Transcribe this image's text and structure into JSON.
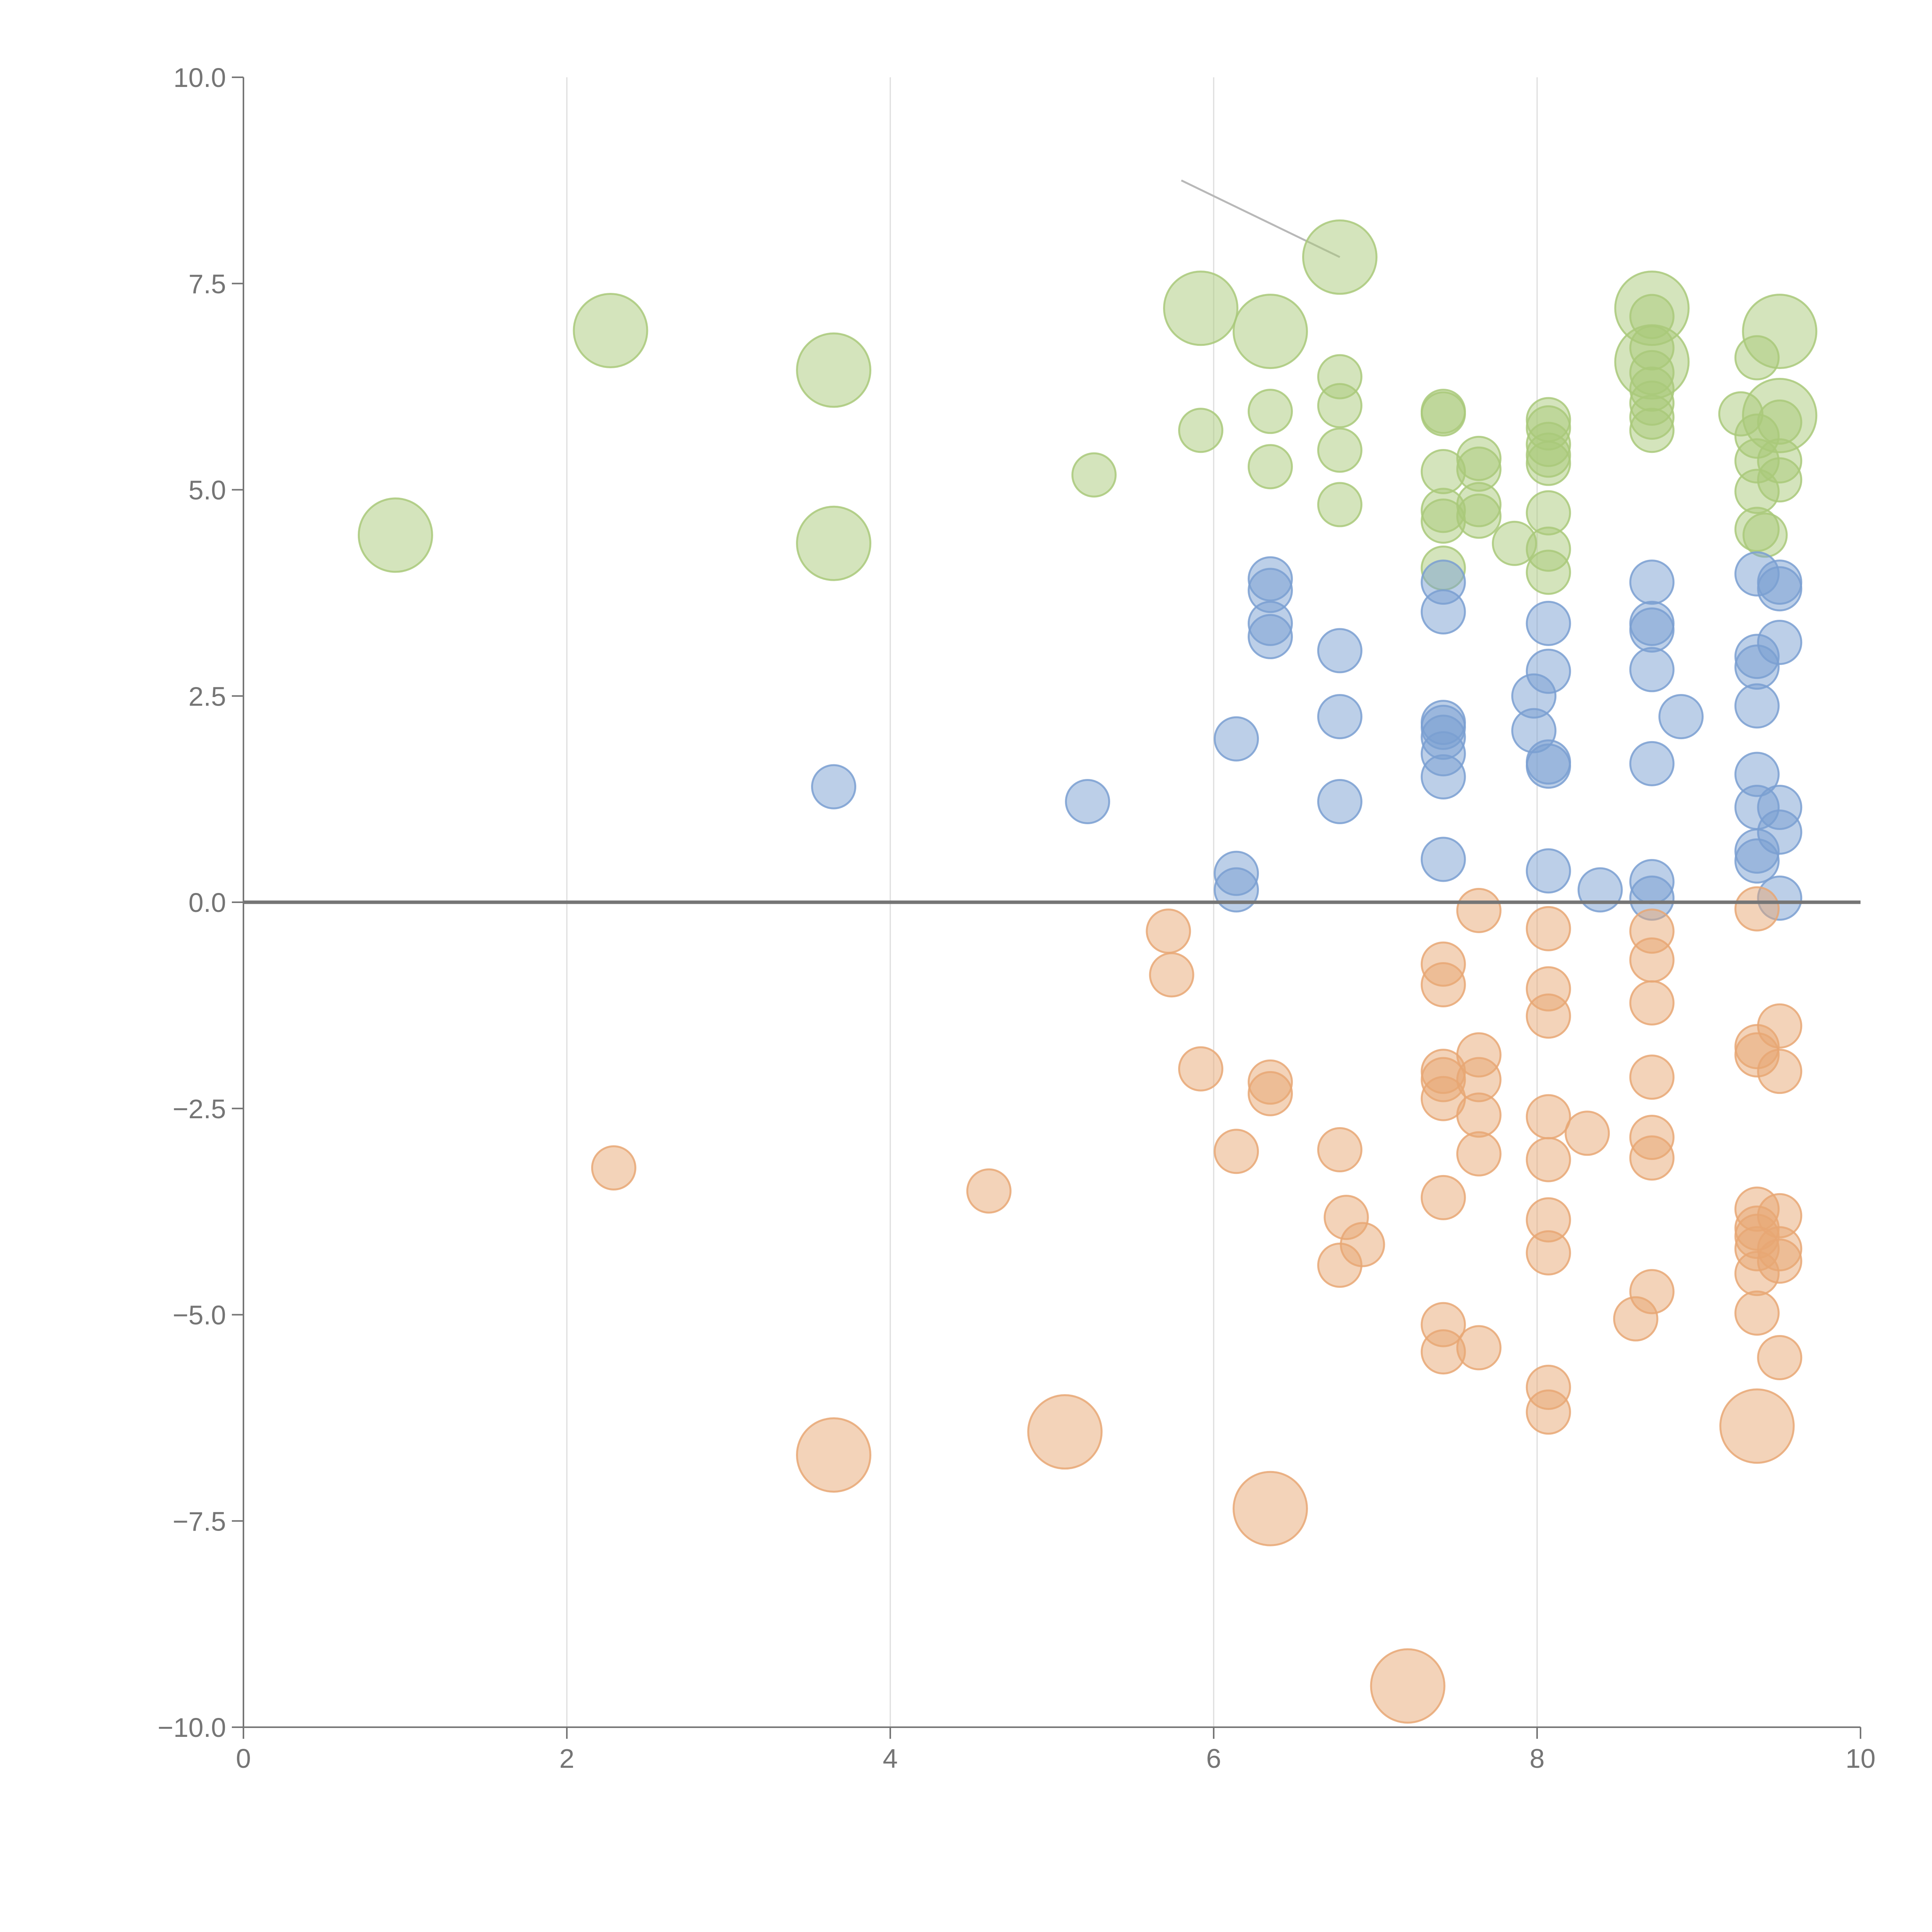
{
  "chart_data": {
    "type": "scatter",
    "title": "",
    "xlabel": "",
    "ylabel": "",
    "xlim": [
      0,
      10
    ],
    "ylim": [
      -10,
      10
    ],
    "grid": "vertical",
    "x_ticks": [
      "0",
      "2",
      "4",
      "6",
      "8",
      "10"
    ],
    "y_ticks": [
      "10.0",
      "7.5",
      "5.0",
      "2.5",
      "0.0",
      "−2.5",
      "−5.0",
      "−7.5",
      "−10.0"
    ],
    "colors": {
      "green": "#a9c97a",
      "blue": "#7a9fd1",
      "orange": "#e8a774",
      "zero_line": "#757575",
      "axis": "#757575",
      "grid": "#dddddd"
    },
    "series": [
      {
        "name": "green",
        "points": [
          [
            0.94,
            4.45,
            2
          ],
          [
            2.27,
            6.93,
            2
          ],
          [
            3.65,
            6.45,
            2
          ],
          [
            3.65,
            4.35,
            2
          ],
          [
            5.26,
            5.18,
            1
          ],
          [
            5.92,
            5.72,
            1
          ],
          [
            5.92,
            7.2,
            2
          ],
          [
            6.35,
            6.92,
            2
          ],
          [
            6.35,
            5.95,
            1
          ],
          [
            6.35,
            5.28,
            1
          ],
          [
            6.78,
            7.82,
            2
          ],
          [
            6.78,
            6.37,
            1
          ],
          [
            6.78,
            6.02,
            1
          ],
          [
            6.78,
            5.48,
            1
          ],
          [
            6.78,
            4.82,
            1
          ],
          [
            7.42,
            5.95,
            1
          ],
          [
            7.42,
            5.92,
            1
          ],
          [
            7.42,
            5.22,
            1
          ],
          [
            7.42,
            4.75,
            1
          ],
          [
            7.42,
            4.62,
            1
          ],
          [
            7.42,
            4.05,
            1
          ],
          [
            7.64,
            5.38,
            1
          ],
          [
            7.64,
            5.25,
            1
          ],
          [
            7.64,
            4.82,
            1
          ],
          [
            7.64,
            4.68,
            1
          ],
          [
            7.86,
            4.35,
            1
          ],
          [
            8.07,
            5.85,
            1
          ],
          [
            8.07,
            5.75,
            1
          ],
          [
            8.07,
            5.55,
            1
          ],
          [
            8.07,
            5.42,
            1
          ],
          [
            8.07,
            5.32,
            1
          ],
          [
            8.07,
            4.72,
            1
          ],
          [
            8.07,
            4.28,
            1
          ],
          [
            8.07,
            4.0,
            1
          ],
          [
            8.71,
            7.2,
            2
          ],
          [
            8.71,
            7.1,
            1
          ],
          [
            8.71,
            6.72,
            1
          ],
          [
            8.71,
            6.55,
            2
          ],
          [
            8.71,
            6.42,
            1
          ],
          [
            8.71,
            6.22,
            1
          ],
          [
            8.71,
            6.05,
            1
          ],
          [
            8.71,
            5.88,
            1
          ],
          [
            8.71,
            5.72,
            1
          ],
          [
            9.26,
            5.92,
            1
          ],
          [
            9.36,
            6.6,
            1
          ],
          [
            9.36,
            5.65,
            1
          ],
          [
            9.36,
            5.35,
            1
          ],
          [
            9.36,
            4.98,
            1
          ],
          [
            9.36,
            4.52,
            1
          ],
          [
            9.5,
            6.92,
            2
          ],
          [
            9.5,
            5.9,
            2
          ],
          [
            9.5,
            5.82,
            1
          ],
          [
            9.5,
            5.35,
            1
          ],
          [
            9.5,
            5.12,
            1
          ],
          [
            9.41,
            4.45,
            1
          ]
        ]
      },
      {
        "name": "blue",
        "points": [
          [
            3.65,
            1.4,
            1
          ],
          [
            5.22,
            1.22,
            1
          ],
          [
            6.14,
            1.98,
            1
          ],
          [
            6.14,
            0.35,
            1
          ],
          [
            6.14,
            0.15,
            1
          ],
          [
            6.35,
            3.92,
            1
          ],
          [
            6.35,
            3.78,
            1
          ],
          [
            6.35,
            3.38,
            1
          ],
          [
            6.35,
            3.22,
            1
          ],
          [
            6.78,
            3.05,
            1
          ],
          [
            6.78,
            2.25,
            1
          ],
          [
            6.78,
            1.22,
            1
          ],
          [
            7.42,
            3.88,
            1
          ],
          [
            7.42,
            3.52,
            1
          ],
          [
            7.42,
            2.18,
            1
          ],
          [
            7.42,
            2.12,
            1
          ],
          [
            7.42,
            2.0,
            1
          ],
          [
            7.42,
            1.8,
            1
          ],
          [
            7.42,
            1.52,
            1
          ],
          [
            7.42,
            0.52,
            1
          ],
          [
            7.98,
            2.5,
            1
          ],
          [
            7.98,
            2.08,
            1
          ],
          [
            8.07,
            3.38,
            1
          ],
          [
            8.07,
            2.8,
            1
          ],
          [
            8.07,
            1.7,
            1
          ],
          [
            8.07,
            1.65,
            1
          ],
          [
            8.07,
            0.38,
            1
          ],
          [
            8.39,
            0.15,
            1
          ],
          [
            8.71,
            3.88,
            1
          ],
          [
            8.71,
            3.38,
            1
          ],
          [
            8.71,
            3.3,
            1
          ],
          [
            8.71,
            2.82,
            1
          ],
          [
            8.71,
            1.68,
            1
          ],
          [
            8.71,
            0.25,
            1
          ],
          [
            8.71,
            0.05,
            1
          ],
          [
            8.89,
            2.25,
            1
          ],
          [
            9.36,
            3.98,
            1
          ],
          [
            9.36,
            2.98,
            1
          ],
          [
            9.36,
            2.85,
            1
          ],
          [
            9.36,
            2.38,
            1
          ],
          [
            9.36,
            1.55,
            1
          ],
          [
            9.36,
            1.15,
            1
          ],
          [
            9.36,
            0.62,
            1
          ],
          [
            9.36,
            0.5,
            1
          ],
          [
            9.5,
            3.88,
            1
          ],
          [
            9.5,
            3.8,
            1
          ],
          [
            9.5,
            3.15,
            1
          ],
          [
            9.5,
            1.15,
            1
          ],
          [
            9.5,
            0.85,
            1
          ],
          [
            9.5,
            0.05,
            1
          ]
        ]
      },
      {
        "name": "orange",
        "points": [
          [
            2.29,
            -3.22,
            1
          ],
          [
            3.65,
            -6.7,
            2
          ],
          [
            4.61,
            -3.5,
            1
          ],
          [
            5.08,
            -6.42,
            2
          ],
          [
            5.72,
            -0.35,
            1
          ],
          [
            5.74,
            -0.88,
            1
          ],
          [
            5.92,
            -2.02,
            1
          ],
          [
            6.14,
            -3.02,
            1
          ],
          [
            6.35,
            -2.18,
            1
          ],
          [
            6.35,
            -2.32,
            1
          ],
          [
            6.35,
            -7.35,
            2
          ],
          [
            6.78,
            -3.0,
            1
          ],
          [
            6.82,
            -3.82,
            1
          ],
          [
            6.78,
            -4.4,
            1
          ],
          [
            6.92,
            -4.15,
            1
          ],
          [
            7.2,
            -9.5,
            2
          ],
          [
            7.42,
            -0.75,
            1
          ],
          [
            7.42,
            -1.0,
            1
          ],
          [
            7.42,
            -2.05,
            1
          ],
          [
            7.42,
            -2.15,
            1
          ],
          [
            7.42,
            -2.38,
            1
          ],
          [
            7.42,
            -3.58,
            1
          ],
          [
            7.42,
            -5.12,
            1
          ],
          [
            7.42,
            -5.45,
            1
          ],
          [
            7.64,
            -0.1,
            1
          ],
          [
            7.64,
            -1.85,
            1
          ],
          [
            7.64,
            -2.15,
            1
          ],
          [
            7.64,
            -2.58,
            1
          ],
          [
            7.64,
            -3.05,
            1
          ],
          [
            7.64,
            -5.4,
            1
          ],
          [
            8.07,
            -0.32,
            1
          ],
          [
            8.07,
            -1.05,
            1
          ],
          [
            8.07,
            -1.38,
            1
          ],
          [
            8.07,
            -2.6,
            1
          ],
          [
            8.07,
            -3.12,
            1
          ],
          [
            8.07,
            -3.85,
            1
          ],
          [
            8.07,
            -4.25,
            1
          ],
          [
            8.07,
            -5.88,
            1
          ],
          [
            8.07,
            -6.18,
            1
          ],
          [
            8.31,
            -2.8,
            1
          ],
          [
            8.61,
            -5.05,
            1
          ],
          [
            8.71,
            -0.35,
            1
          ],
          [
            8.71,
            -0.7,
            1
          ],
          [
            8.71,
            -1.22,
            1
          ],
          [
            8.71,
            -2.12,
            1
          ],
          [
            8.71,
            -2.85,
            1
          ],
          [
            8.71,
            -3.1,
            1
          ],
          [
            8.71,
            -4.72,
            1
          ],
          [
            9.36,
            -0.08,
            1
          ],
          [
            9.36,
            -1.75,
            1
          ],
          [
            9.36,
            -1.85,
            1
          ],
          [
            9.36,
            -3.72,
            1
          ],
          [
            9.36,
            -3.95,
            1
          ],
          [
            9.36,
            -4.05,
            1
          ],
          [
            9.36,
            -4.2,
            1
          ],
          [
            9.36,
            -4.5,
            1
          ],
          [
            9.36,
            -4.98,
            1
          ],
          [
            9.36,
            -6.35,
            2
          ],
          [
            9.5,
            -1.5,
            1
          ],
          [
            9.5,
            -2.05,
            1
          ],
          [
            9.5,
            -3.8,
            1
          ],
          [
            9.5,
            -4.2,
            1
          ],
          [
            9.5,
            -4.35,
            1
          ],
          [
            9.5,
            -5.52,
            1
          ]
        ]
      }
    ],
    "annotations": [
      {
        "x": 6.78,
        "y": 7.82,
        "tx": 5.8,
        "ty": 8.75
      }
    ]
  }
}
